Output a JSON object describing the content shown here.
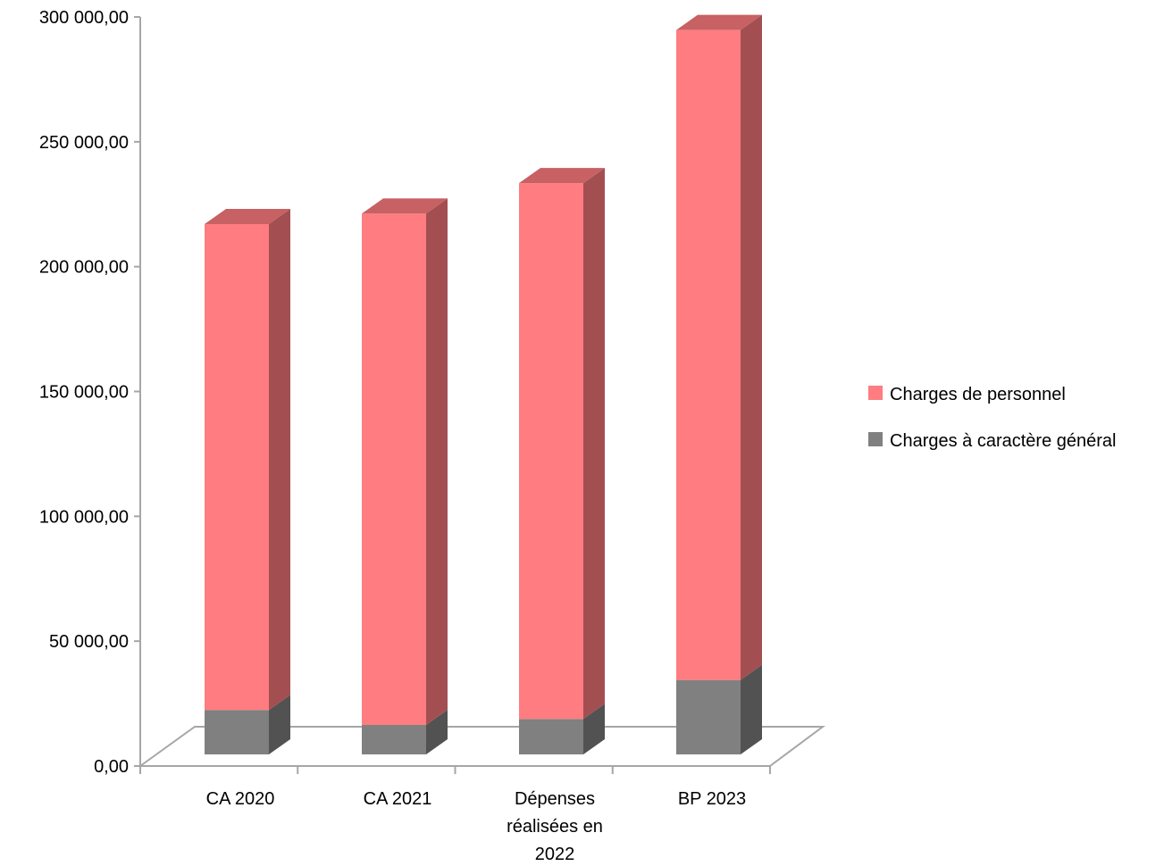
{
  "chart_data": {
    "type": "bar",
    "stacked": true,
    "three_d": true,
    "categories": [
      [
        "CA 2020"
      ],
      [
        "CA 2021"
      ],
      [
        "Dépenses",
        "réalisées en",
        "2022"
      ],
      [
        "BP 2023"
      ]
    ],
    "series": [
      {
        "name": "Charges à caractère général",
        "color": "#808080",
        "values": [
          17800,
          11800,
          14200,
          29800
        ]
      },
      {
        "name": "Charges de personnel",
        "color": "#FF7C80",
        "values": [
          194600,
          204800,
          214600,
          260300
        ]
      }
    ],
    "y_ticks": [
      "0,00",
      "50 000,00",
      "100 000,00",
      "150 000,00",
      "200 000,00",
      "250 000,00",
      "300 000,00"
    ],
    "ylim": [
      0,
      300000
    ],
    "y_step": 50000,
    "legend_position": "right",
    "grid": false
  }
}
